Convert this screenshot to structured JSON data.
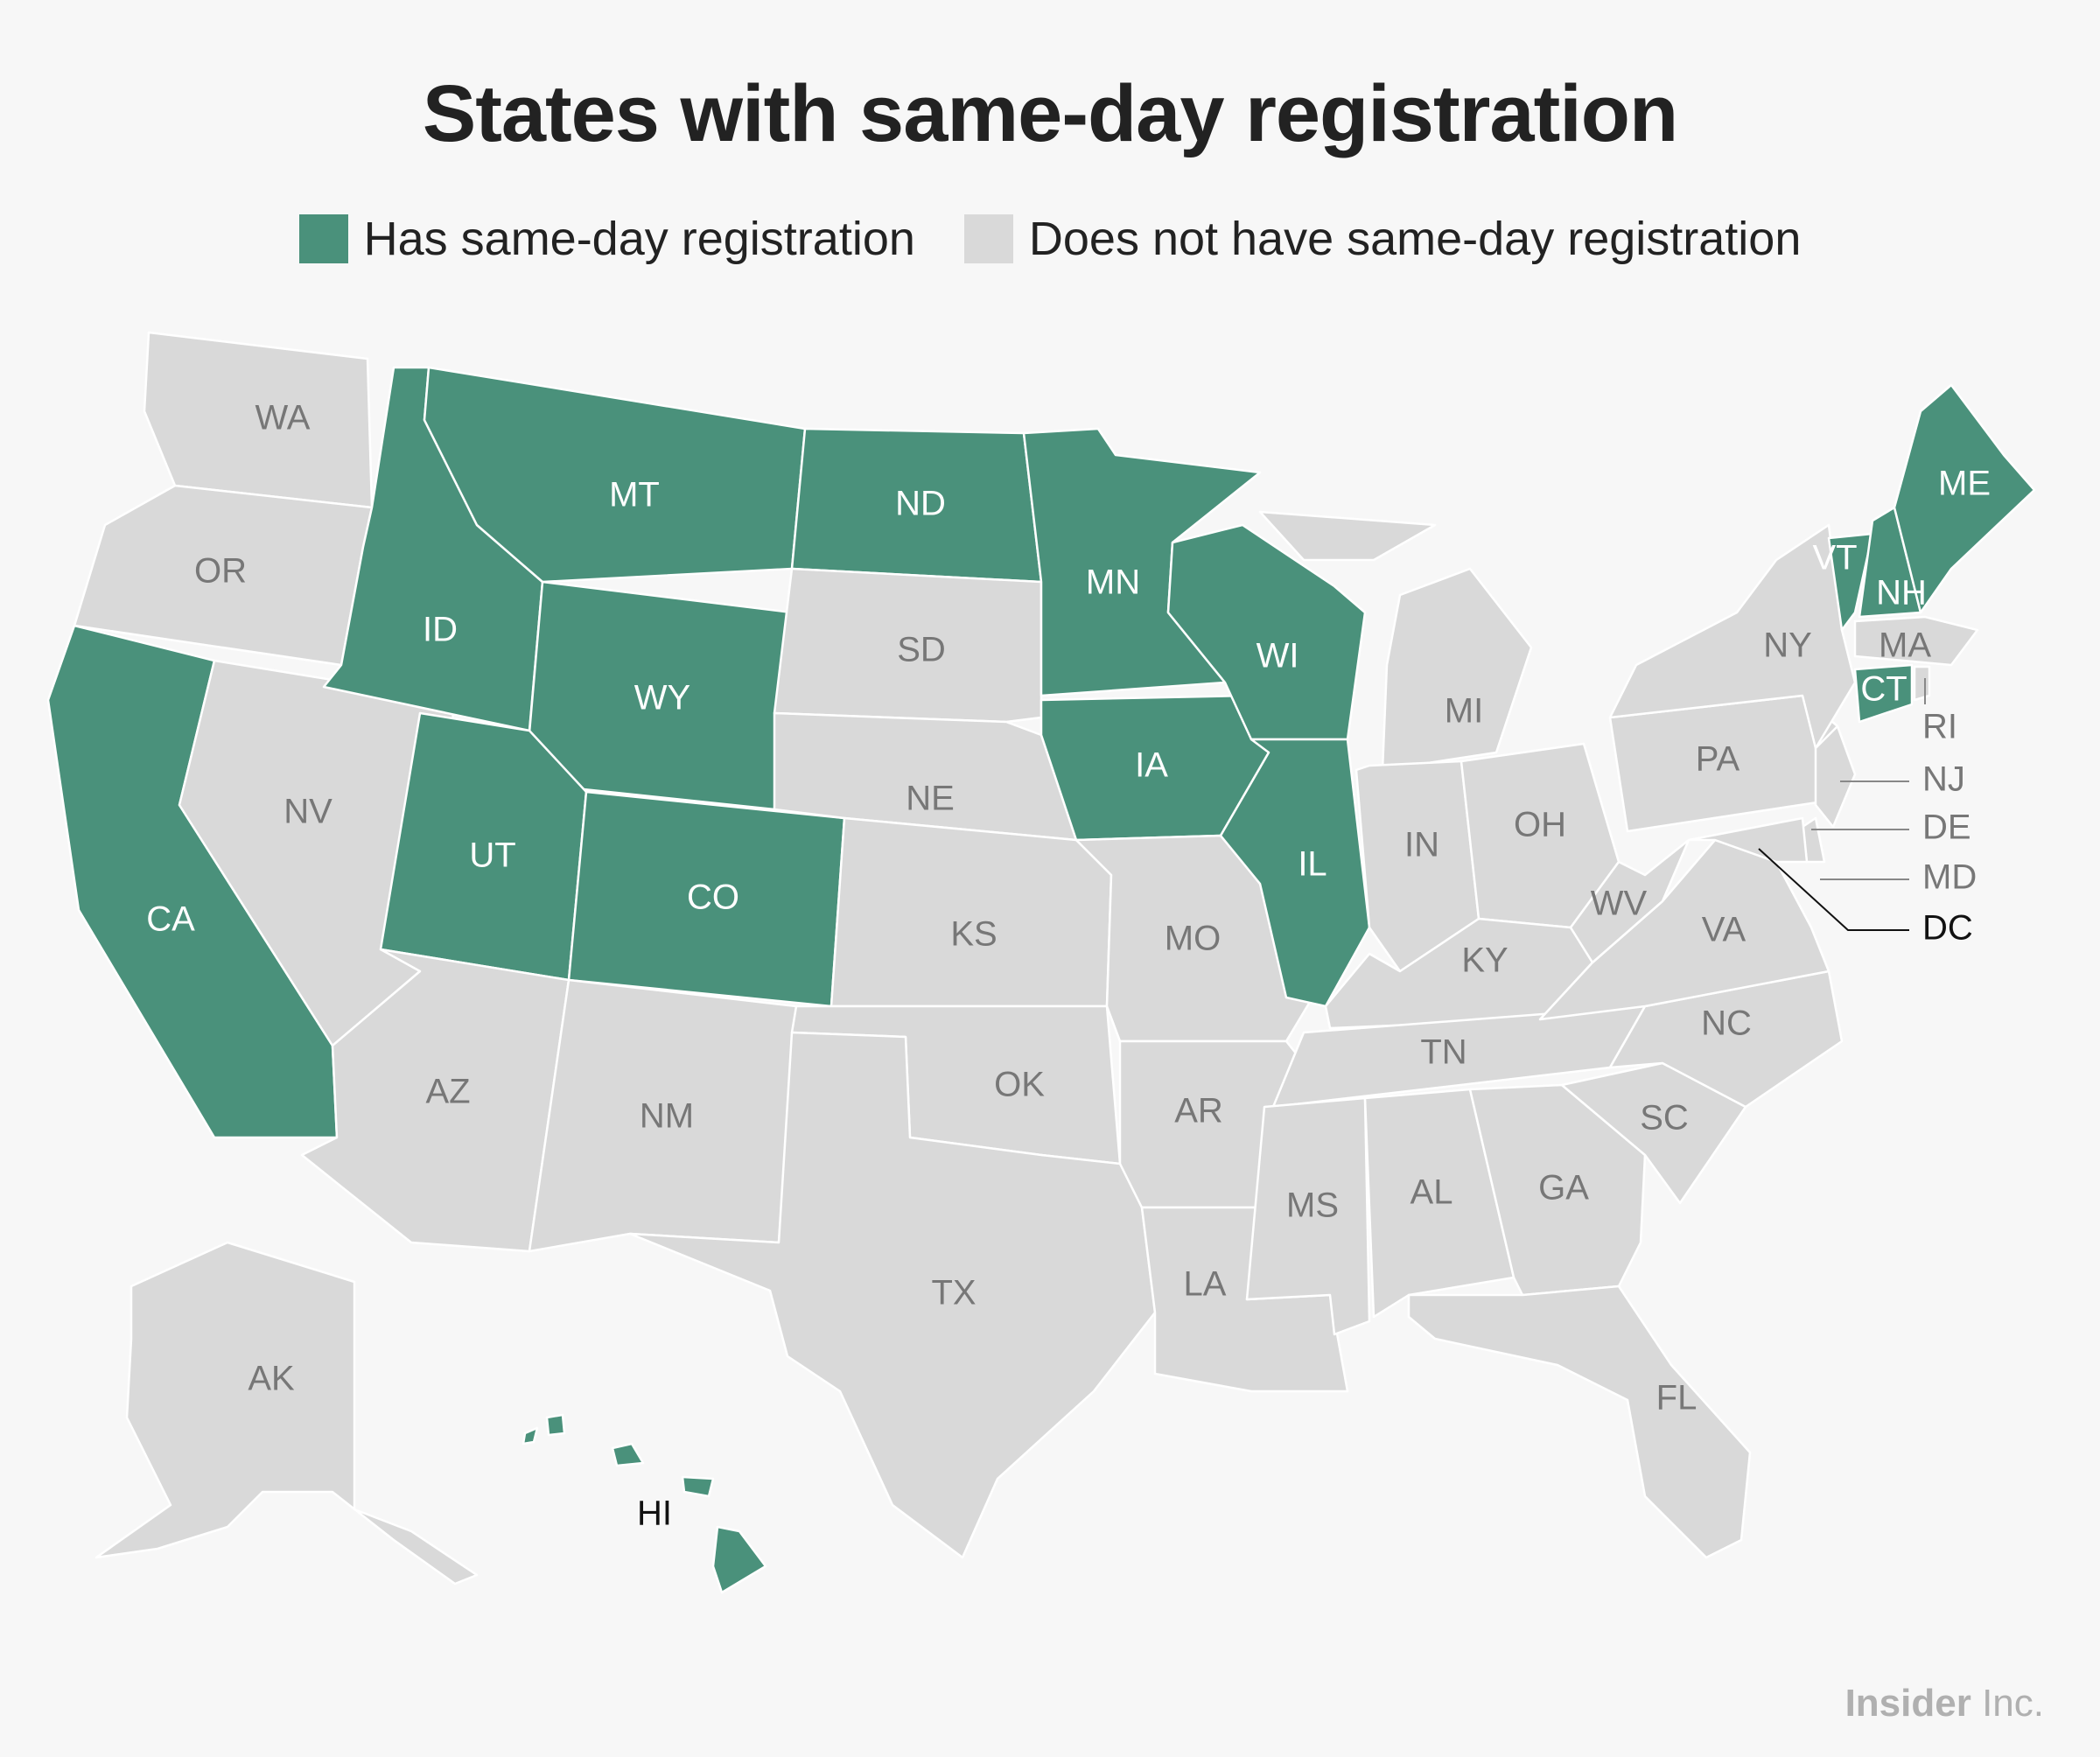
{
  "title": "States with same-day registration",
  "legend": {
    "has": {
      "label": "Has same-day registration",
      "color": "#4a917b"
    },
    "not": {
      "label": "Does not have same-day registration",
      "color": "#d9d9d9"
    }
  },
  "colors": {
    "label_dark": "#777777",
    "label_light": "#ffffff",
    "label_black": "#111111",
    "leader": "#888888",
    "border": "#ffffff",
    "background": "#f7f7f7"
  },
  "states": [
    {
      "abbr": "WA",
      "same_day": false
    },
    {
      "abbr": "OR",
      "same_day": false
    },
    {
      "abbr": "CA",
      "same_day": true
    },
    {
      "abbr": "NV",
      "same_day": false
    },
    {
      "abbr": "ID",
      "same_day": true
    },
    {
      "abbr": "MT",
      "same_day": true
    },
    {
      "abbr": "WY",
      "same_day": true
    },
    {
      "abbr": "UT",
      "same_day": true
    },
    {
      "abbr": "CO",
      "same_day": true
    },
    {
      "abbr": "AZ",
      "same_day": false
    },
    {
      "abbr": "NM",
      "same_day": false
    },
    {
      "abbr": "ND",
      "same_day": true
    },
    {
      "abbr": "SD",
      "same_day": false
    },
    {
      "abbr": "NE",
      "same_day": false
    },
    {
      "abbr": "KS",
      "same_day": false
    },
    {
      "abbr": "OK",
      "same_day": false
    },
    {
      "abbr": "TX",
      "same_day": false
    },
    {
      "abbr": "MN",
      "same_day": true
    },
    {
      "abbr": "IA",
      "same_day": true
    },
    {
      "abbr": "MO",
      "same_day": false
    },
    {
      "abbr": "AR",
      "same_day": false
    },
    {
      "abbr": "LA",
      "same_day": false
    },
    {
      "abbr": "WI",
      "same_day": true
    },
    {
      "abbr": "IL",
      "same_day": true
    },
    {
      "abbr": "MI",
      "same_day": false
    },
    {
      "abbr": "IN",
      "same_day": false
    },
    {
      "abbr": "OH",
      "same_day": false
    },
    {
      "abbr": "KY",
      "same_day": false
    },
    {
      "abbr": "TN",
      "same_day": false
    },
    {
      "abbr": "MS",
      "same_day": false
    },
    {
      "abbr": "AL",
      "same_day": false
    },
    {
      "abbr": "GA",
      "same_day": false
    },
    {
      "abbr": "FL",
      "same_day": false
    },
    {
      "abbr": "SC",
      "same_day": false
    },
    {
      "abbr": "NC",
      "same_day": false
    },
    {
      "abbr": "VA",
      "same_day": false
    },
    {
      "abbr": "WV",
      "same_day": false
    },
    {
      "abbr": "PA",
      "same_day": false
    },
    {
      "abbr": "NY",
      "same_day": false
    },
    {
      "abbr": "VT",
      "same_day": true
    },
    {
      "abbr": "NH",
      "same_day": true
    },
    {
      "abbr": "ME",
      "same_day": true
    },
    {
      "abbr": "MA",
      "same_day": false
    },
    {
      "abbr": "CT",
      "same_day": true
    },
    {
      "abbr": "RI",
      "same_day": false
    },
    {
      "abbr": "NJ",
      "same_day": false
    },
    {
      "abbr": "DE",
      "same_day": false
    },
    {
      "abbr": "MD",
      "same_day": false
    },
    {
      "abbr": "DC",
      "same_day": false
    },
    {
      "abbr": "AK",
      "same_day": false
    },
    {
      "abbr": "HI",
      "same_day": true
    }
  ],
  "credit": {
    "brand": "Insider",
    "suffix": " Inc."
  }
}
